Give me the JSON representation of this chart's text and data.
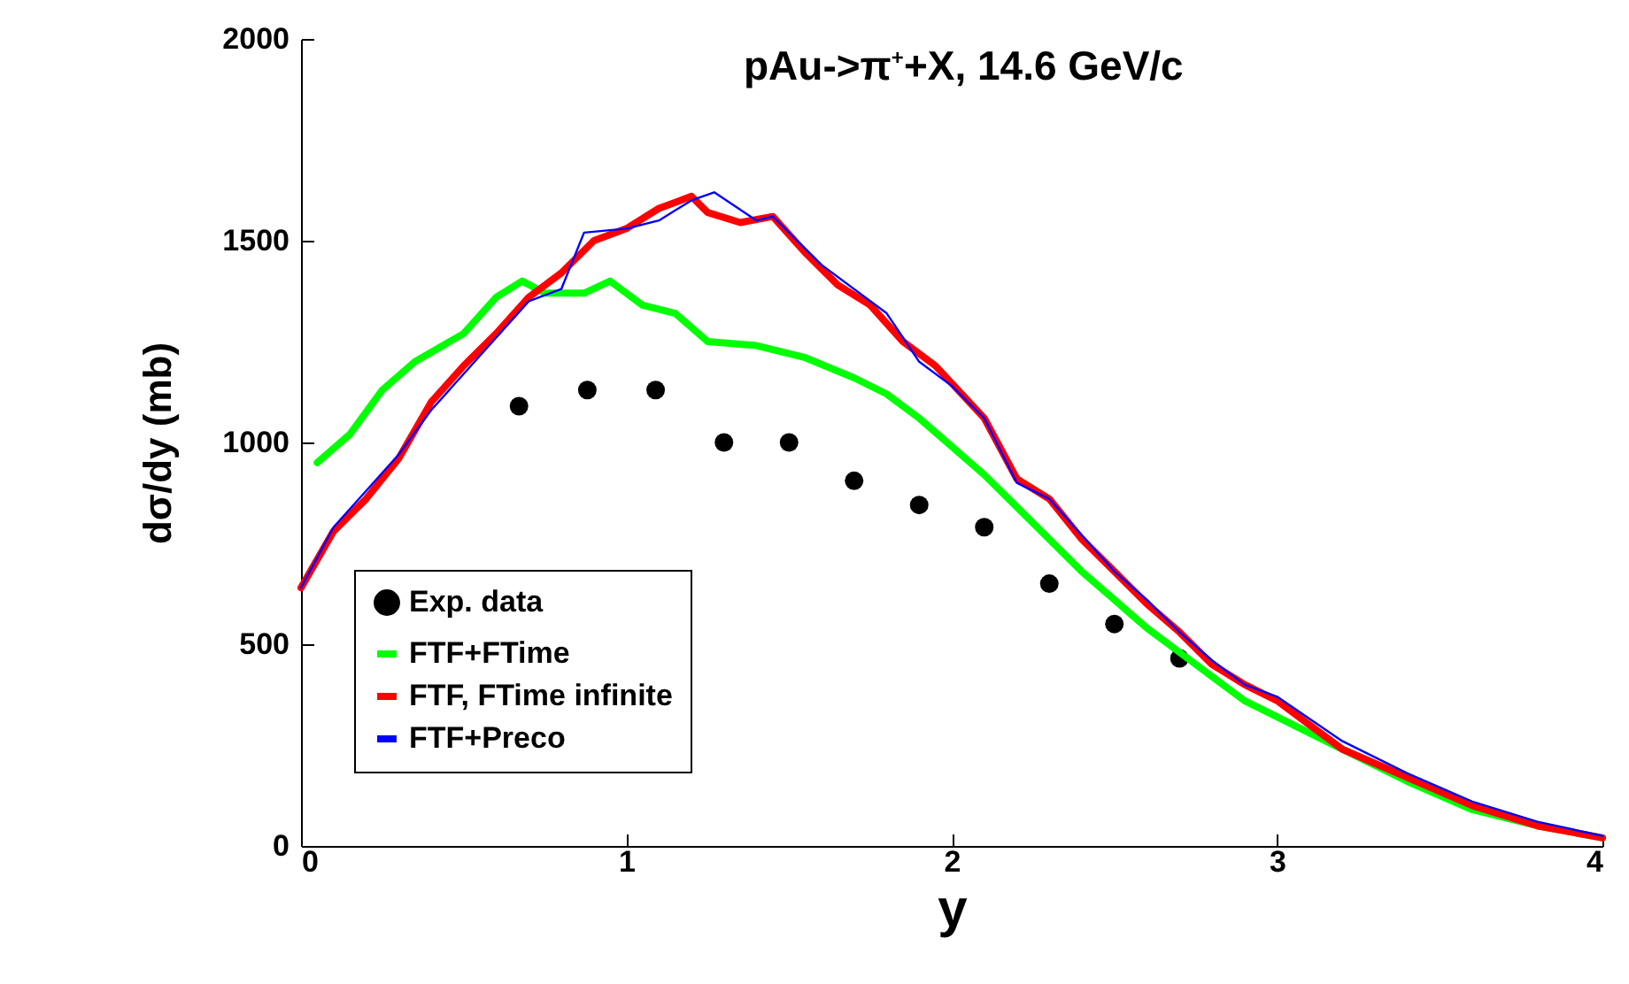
{
  "chart_data": {
    "type": "line",
    "title": "pAu->π$^{+}$+X, 14.6 GeV/c",
    "xlabel": "y",
    "ylabel": "dσ/dy (mb)",
    "xlim": [
      0,
      4
    ],
    "ylim": [
      0,
      2000
    ],
    "xticks": [
      0,
      1,
      2,
      3,
      4
    ],
    "yticks": [
      0,
      500,
      1000,
      1500,
      2000
    ],
    "grid": false,
    "legend": "bottom left",
    "series": [
      {
        "name": "Exp. data",
        "type": "scatter",
        "marker": "circle",
        "color": "#000000",
        "x": [
          0.67,
          0.88,
          1.09,
          1.3,
          1.5,
          1.7,
          1.9,
          2.1,
          2.3,
          2.5,
          2.7
        ],
        "values": [
          1090,
          1130,
          1130,
          1000,
          1000,
          905,
          845,
          790,
          650,
          550,
          465
        ]
      },
      {
        "name": "FTF+FTime",
        "color": "#00ff00",
        "x": [
          0.05,
          0.15,
          0.25,
          0.35,
          0.5,
          0.6,
          0.68,
          0.75,
          0.87,
          0.95,
          1.05,
          1.15,
          1.25,
          1.4,
          1.55,
          1.7,
          1.8,
          1.9,
          2.0,
          2.1,
          2.2,
          2.3,
          2.4,
          2.5,
          2.6,
          2.7,
          2.8,
          2.9,
          3.0,
          3.2,
          3.4,
          3.6,
          3.8,
          4.0
        ],
        "values": [
          950,
          1020,
          1130,
          1200,
          1270,
          1360,
          1400,
          1370,
          1370,
          1400,
          1340,
          1320,
          1250,
          1240,
          1210,
          1160,
          1120,
          1060,
          990,
          920,
          840,
          760,
          680,
          610,
          540,
          480,
          420,
          360,
          320,
          240,
          160,
          90,
          50,
          20
        ]
      },
      {
        "name": "FTF, FTime infinite",
        "color": "#ff0000",
        "x": [
          0,
          0.1,
          0.2,
          0.3,
          0.4,
          0.5,
          0.6,
          0.7,
          0.8,
          0.9,
          1.0,
          1.1,
          1.2,
          1.25,
          1.35,
          1.45,
          1.55,
          1.65,
          1.75,
          1.85,
          1.95,
          2.1,
          2.2,
          2.3,
          2.4,
          2.5,
          2.6,
          2.7,
          2.8,
          2.9,
          3.0,
          3.1,
          3.2,
          3.4,
          3.6,
          3.8,
          4.0
        ],
        "values": [
          640,
          780,
          860,
          960,
          1100,
          1190,
          1270,
          1360,
          1420,
          1500,
          1530,
          1580,
          1610,
          1570,
          1545,
          1560,
          1470,
          1390,
          1340,
          1250,
          1190,
          1060,
          910,
          860,
          760,
          680,
          600,
          530,
          450,
          400,
          360,
          300,
          240,
          170,
          100,
          50,
          20
        ]
      },
      {
        "name": "FTF+Preco",
        "color": "#0000ff",
        "x": [
          0,
          0.1,
          0.2,
          0.3,
          0.4,
          0.5,
          0.6,
          0.7,
          0.8,
          0.87,
          1.0,
          1.1,
          1.2,
          1.27,
          1.4,
          1.45,
          1.6,
          1.8,
          1.9,
          2.0,
          2.1,
          2.2,
          2.3,
          2.4,
          2.5,
          2.6,
          2.7,
          2.8,
          2.9,
          3.0,
          3.2,
          3.4,
          3.6,
          3.8,
          4.0
        ],
        "values": [
          640,
          790,
          880,
          970,
          1080,
          1170,
          1260,
          1350,
          1380,
          1520,
          1530,
          1550,
          1600,
          1620,
          1550,
          1560,
          1440,
          1320,
          1200,
          1140,
          1060,
          900,
          860,
          770,
          680,
          610,
          530,
          460,
          400,
          370,
          260,
          180,
          110,
          60,
          25
        ]
      }
    ]
  }
}
